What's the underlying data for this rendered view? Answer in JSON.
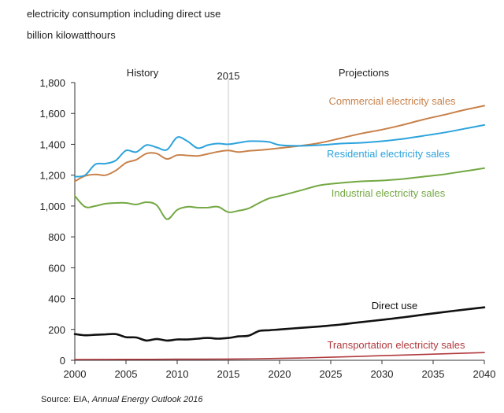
{
  "header": {
    "subtitle_line1": "electricity consumption including direct use",
    "subtitle_line2": "billion kilowatthours"
  },
  "source": {
    "prefix": "Source:  EIA, ",
    "publication": "Annual Energy Outlook 2016"
  },
  "chart_data": {
    "type": "line",
    "title": "",
    "xlabel": "",
    "ylabel": "",
    "xlim": [
      2000,
      2040
    ],
    "ylim": [
      0,
      1800
    ],
    "x_ticks": [
      2000,
      2005,
      2010,
      2015,
      2020,
      2025,
      2030,
      2035,
      2040
    ],
    "y_ticks": [
      0,
      200,
      400,
      600,
      800,
      1000,
      1200,
      1400,
      1600,
      1800
    ],
    "y_tick_labels": [
      "0",
      "200",
      "400",
      "600",
      "800",
      "1,000",
      "1,200",
      "1,400",
      "1,600",
      "1,800"
    ],
    "grid": false,
    "divider": {
      "x": 2015,
      "label": "2015"
    },
    "region_labels": {
      "left": "History",
      "right": "Projections"
    },
    "colors": {
      "commercial": "#c8814a",
      "residential": "#2ca3dc",
      "industrial": "#73a843",
      "direct_use": "#111111",
      "transportation": "#b03a3e",
      "divider": "#c8c8c8",
      "axis": "#333333"
    },
    "series": [
      {
        "key": "commercial",
        "name": "Commercial electricity sales",
        "x": [
          2000,
          2001,
          2002,
          2003,
          2004,
          2005,
          2006,
          2007,
          2008,
          2009,
          2010,
          2011,
          2012,
          2013,
          2014,
          2015,
          2016,
          2017,
          2018,
          2019,
          2020,
          2022,
          2024,
          2026,
          2028,
          2030,
          2032,
          2034,
          2036,
          2038,
          2040
        ],
        "values": [
          1160,
          1195,
          1205,
          1200,
          1230,
          1280,
          1300,
          1340,
          1340,
          1305,
          1330,
          1328,
          1325,
          1338,
          1352,
          1360,
          1350,
          1358,
          1362,
          1368,
          1375,
          1390,
          1410,
          1440,
          1470,
          1495,
          1525,
          1560,
          1590,
          1622,
          1650
        ]
      },
      {
        "key": "residential",
        "name": "Residential electricity sales",
        "x": [
          2000,
          2001,
          2002,
          2003,
          2004,
          2005,
          2006,
          2007,
          2008,
          2009,
          2010,
          2011,
          2012,
          2013,
          2014,
          2015,
          2016,
          2017,
          2018,
          2019,
          2020,
          2022,
          2024,
          2026,
          2028,
          2030,
          2032,
          2034,
          2036,
          2038,
          2040
        ],
        "values": [
          1190,
          1200,
          1270,
          1275,
          1295,
          1360,
          1350,
          1395,
          1380,
          1365,
          1445,
          1420,
          1375,
          1395,
          1405,
          1400,
          1410,
          1420,
          1420,
          1415,
          1395,
          1390,
          1395,
          1405,
          1410,
          1420,
          1435,
          1455,
          1475,
          1500,
          1525
        ]
      },
      {
        "key": "industrial",
        "name": "Industrial electricity sales",
        "x": [
          2000,
          2001,
          2002,
          2003,
          2004,
          2005,
          2006,
          2007,
          2008,
          2009,
          2010,
          2011,
          2012,
          2013,
          2014,
          2015,
          2016,
          2017,
          2018,
          2019,
          2020,
          2022,
          2024,
          2026,
          2028,
          2030,
          2032,
          2034,
          2036,
          2038,
          2040
        ],
        "values": [
          1065,
          995,
          1000,
          1015,
          1020,
          1020,
          1010,
          1025,
          1005,
          915,
          975,
          995,
          990,
          990,
          995,
          960,
          970,
          985,
          1020,
          1050,
          1065,
          1100,
          1135,
          1150,
          1160,
          1165,
          1175,
          1190,
          1205,
          1225,
          1245
        ]
      },
      {
        "key": "direct_use",
        "name": "Direct use",
        "x": [
          2000,
          2001,
          2002,
          2003,
          2004,
          2005,
          2006,
          2007,
          2008,
          2009,
          2010,
          2011,
          2012,
          2013,
          2014,
          2015,
          2016,
          2017,
          2018,
          2019,
          2020,
          2022,
          2024,
          2026,
          2028,
          2030,
          2032,
          2034,
          2036,
          2038,
          2040
        ],
        "values": [
          170,
          162,
          165,
          168,
          170,
          150,
          148,
          128,
          138,
          128,
          135,
          135,
          140,
          145,
          140,
          145,
          155,
          160,
          190,
          195,
          200,
          210,
          220,
          232,
          248,
          262,
          278,
          295,
          312,
          328,
          343
        ]
      },
      {
        "key": "transportation",
        "name": "Transportation electricity sales",
        "x": [
          2000,
          2005,
          2010,
          2015,
          2020,
          2025,
          2030,
          2035,
          2040
        ],
        "values": [
          5,
          6,
          7,
          8,
          12,
          20,
          30,
          40,
          50
        ]
      }
    ],
    "series_labels": [
      {
        "key": "commercial",
        "text": "Commercial electricity sales"
      },
      {
        "key": "residential",
        "text": "Residential electricity sales"
      },
      {
        "key": "industrial",
        "text": "Industrial electricity sales"
      },
      {
        "key": "direct_use",
        "text": "Direct use"
      },
      {
        "key": "transportation",
        "text": "Transportation electricity sales"
      }
    ]
  }
}
